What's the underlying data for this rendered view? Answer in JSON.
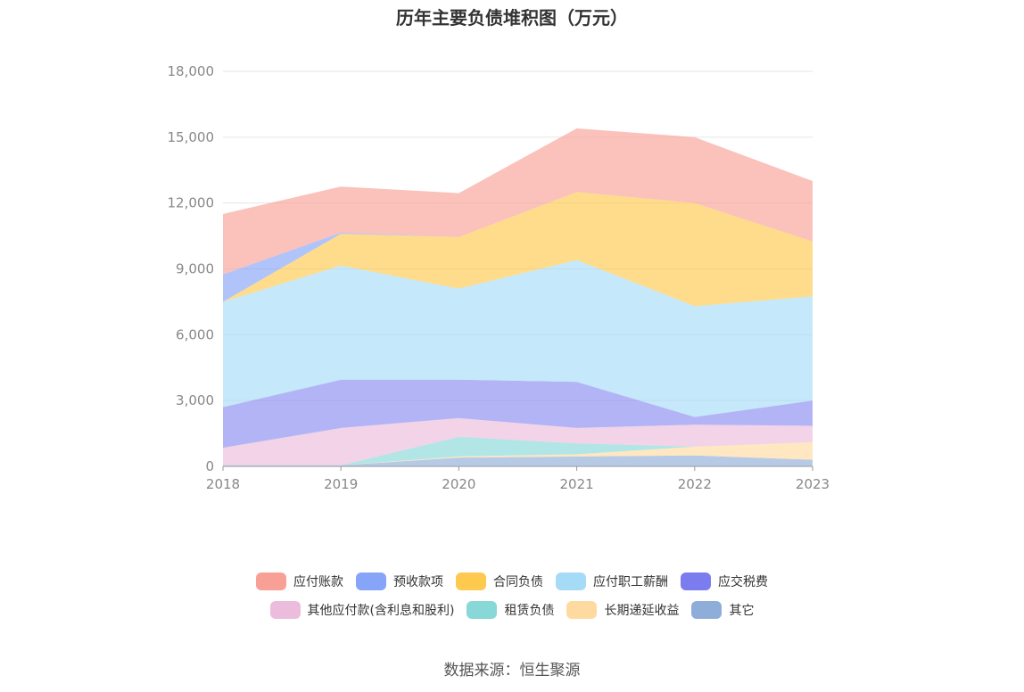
{
  "chart_data": {
    "type": "area",
    "stacked": true,
    "title": "历年主要负债堆积图（万元）",
    "xlabel": "",
    "ylabel": "",
    "categories": [
      "2018",
      "2019",
      "2020",
      "2021",
      "2022",
      "2023"
    ],
    "ylim": [
      0,
      18000
    ],
    "yticks": [
      "0",
      "3,000",
      "6,000",
      "9,000",
      "12,000",
      "15,000",
      "18,000"
    ],
    "ytick_values": [
      0,
      3000,
      6000,
      9000,
      12000,
      15000,
      18000
    ],
    "grid": true,
    "legend_position": "bottom",
    "series": [
      {
        "name": "其它",
        "color": "#8fadd9",
        "values": [
          50,
          50,
          400,
          450,
          500,
          300
        ]
      },
      {
        "name": "长期递延收益",
        "color": "#ffdaa0",
        "values": [
          0,
          0,
          50,
          100,
          400,
          800
        ]
      },
      {
        "name": "租赁负债",
        "color": "#88d8d8",
        "values": [
          0,
          0,
          900,
          500,
          0,
          0
        ]
      },
      {
        "name": "其他应付款(含利息和股利)",
        "color": "#ebbcdc",
        "values": [
          800,
          1700,
          850,
          700,
          1000,
          750
        ]
      },
      {
        "name": "应交税费",
        "color": "#8a8cf0",
        "values": [
          1850,
          2200,
          1750,
          2100,
          350,
          1150
        ]
      },
      {
        "name": "应付职工薪酬",
        "color": "#a6dbf7",
        "values": [
          4800,
          5200,
          4150,
          5550,
          5050,
          4750
        ]
      },
      {
        "name": "合同负债",
        "color": "#fec94f",
        "values": [
          0,
          1450,
          2350,
          3100,
          4700,
          2500
        ]
      },
      {
        "name": "预收款项",
        "color": "#87a5f8",
        "values": [
          1250,
          50,
          0,
          0,
          0,
          0
        ]
      },
      {
        "name": "应付账款",
        "color": "#f9a096",
        "values": [
          2750,
          2100,
          2000,
          2900,
          3000,
          2750
        ]
      }
    ]
  },
  "legend_rows": [
    [
      {
        "label": "应付账款",
        "color": "#f9a096"
      },
      {
        "label": "预收款项",
        "color": "#87a5f8"
      },
      {
        "label": "合同负债",
        "color": "#fec94f"
      },
      {
        "label": "应付职工薪酬",
        "color": "#a6dbf7"
      },
      {
        "label": "应交税费",
        "color": "#7b7cee"
      }
    ],
    [
      {
        "label": "其他应付款(含利息和股利)",
        "color": "#ebbcdc"
      },
      {
        "label": "租赁负债",
        "color": "#88d8d8"
      },
      {
        "label": "长期递延收益",
        "color": "#ffdaa0"
      },
      {
        "label": "其它",
        "color": "#8fadd9"
      }
    ]
  ],
  "source": "数据来源：恒生聚源"
}
